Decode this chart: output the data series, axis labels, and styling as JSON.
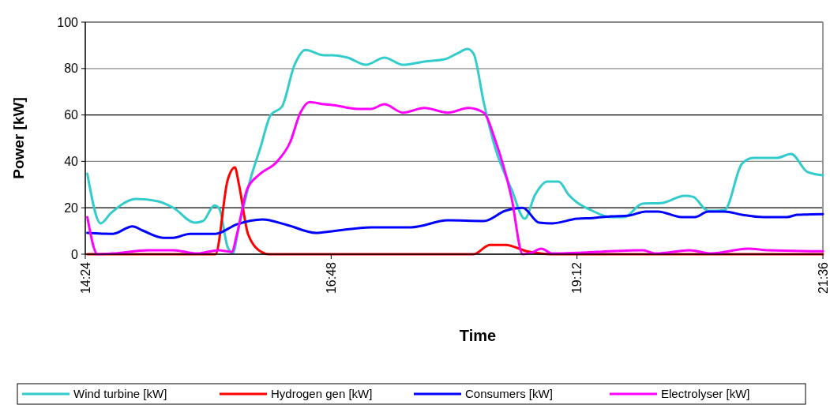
{
  "chart_data": {
    "type": "line",
    "xlabel": "Time",
    "ylabel": "Power [kW]",
    "xlim": [
      14.4,
      21.6
    ],
    "xticks": [
      {
        "value": 14.4,
        "label": "14:24"
      },
      {
        "value": 16.8,
        "label": "16:48"
      },
      {
        "value": 19.2,
        "label": "19:12"
      },
      {
        "value": 21.6,
        "label": "21:36"
      }
    ],
    "ylim": [
      0,
      100
    ],
    "yticks": [
      0,
      20,
      40,
      60,
      80,
      100
    ],
    "grid": "y",
    "legend": "bottom",
    "marker": "none",
    "line_style": "solid",
    "series": [
      {
        "name": "Wind turbine [kW]",
        "color": "#33cccc",
        "x": [
          14.42,
          14.55,
          14.65,
          14.9,
          15.11,
          15.26,
          15.47,
          15.55,
          15.66,
          15.71,
          15.79,
          15.84,
          15.9,
          16.01,
          16.11,
          16.21,
          16.32,
          16.44,
          16.55,
          16.73,
          16.81,
          16.96,
          17.14,
          17.32,
          17.5,
          17.71,
          17.91,
          18.04,
          18.13,
          18.19,
          18.29,
          18.4,
          18.56,
          18.69,
          18.79,
          18.91,
          19.02,
          19.12,
          19.35,
          19.53,
          19.66,
          19.84,
          20.02,
          20.25,
          20.33,
          20.48,
          20.64,
          20.81,
          20.92,
          21.15,
          21.29,
          21.45,
          21.6
        ],
        "values": [
          34.7,
          13.3,
          17.7,
          23.8,
          22.8,
          20,
          13.6,
          14.3,
          21,
          19.4,
          3,
          0.5,
          12,
          32,
          46,
          60,
          63.6,
          81.3,
          88,
          85.7,
          85.7,
          84.7,
          81.6,
          84.7,
          81.6,
          83,
          84,
          86.7,
          88.4,
          86.4,
          65.3,
          46,
          28,
          15.3,
          25.5,
          31.3,
          31.3,
          25.5,
          18.7,
          16,
          16,
          21.8,
          22,
          25.2,
          24.8,
          18.7,
          19,
          39,
          41.5,
          41.5,
          43.2,
          35.4,
          34
        ]
      },
      {
        "name": "Hydrogen gen [kW]",
        "color": "#ff0000",
        "x": [
          14.42,
          15.67,
          15.79,
          15.86,
          15.9,
          15.99,
          16.13,
          16.19,
          18.19,
          18.35,
          18.5,
          18.71,
          18.96,
          21.6
        ],
        "values": [
          0,
          0,
          32,
          37.4,
          30,
          8.5,
          0.7,
          0,
          0,
          4,
          4,
          1.3,
          0,
          0
        ]
      },
      {
        "name": "Consumers [kW]",
        "color": "#0000ff",
        "x": [
          14.42,
          14.67,
          14.86,
          14.96,
          15.16,
          15.26,
          15.42,
          15.67,
          15.88,
          16.13,
          16.37,
          16.65,
          16.81,
          17.19,
          17.58,
          17.94,
          18.29,
          18.5,
          18.67,
          18.83,
          18.96,
          19.2,
          19.35,
          19.53,
          19.71,
          19.87,
          19.99,
          20.22,
          20.35,
          20.48,
          20.64,
          20.81,
          21.02,
          21.25,
          21.35,
          21.6
        ],
        "values": [
          9.2,
          8.8,
          12,
          10.2,
          7.1,
          7.1,
          8.8,
          8.8,
          12.9,
          15,
          12.6,
          9.2,
          9.9,
          11.6,
          11.6,
          14.6,
          14.3,
          18.7,
          20,
          13.6,
          13.3,
          15.3,
          15.6,
          16.3,
          16.7,
          18.4,
          18.4,
          16,
          16,
          18.4,
          18.4,
          17,
          16,
          16,
          17,
          17.3
        ]
      },
      {
        "name": "Electrolyser [kW]",
        "color": "#ff00ff",
        "x": [
          14.42,
          14.52,
          14.67,
          15.01,
          15.26,
          15.49,
          15.7,
          15.83,
          15.88,
          15.98,
          16.09,
          16.27,
          16.4,
          16.5,
          16.59,
          16.73,
          16.81,
          17.06,
          17.19,
          17.32,
          17.5,
          17.71,
          17.94,
          18.14,
          18.29,
          18.4,
          18.56,
          18.67,
          18.76,
          18.85,
          18.96,
          19.84,
          19.97,
          20.3,
          20.51,
          20.87,
          21.07,
          21.6
        ],
        "values": [
          16,
          0,
          0.3,
          1.7,
          1.7,
          0.3,
          1.7,
          1,
          8.5,
          28,
          34,
          39.8,
          48.3,
          61,
          65.6,
          64.6,
          64.3,
          62.6,
          62.6,
          64.6,
          61,
          63,
          61,
          63,
          61,
          49.3,
          24.5,
          0,
          0.7,
          2.4,
          0.3,
          1.7,
          0.3,
          1.7,
          0.3,
          2.4,
          1.7,
          1.3
        ]
      }
    ]
  }
}
